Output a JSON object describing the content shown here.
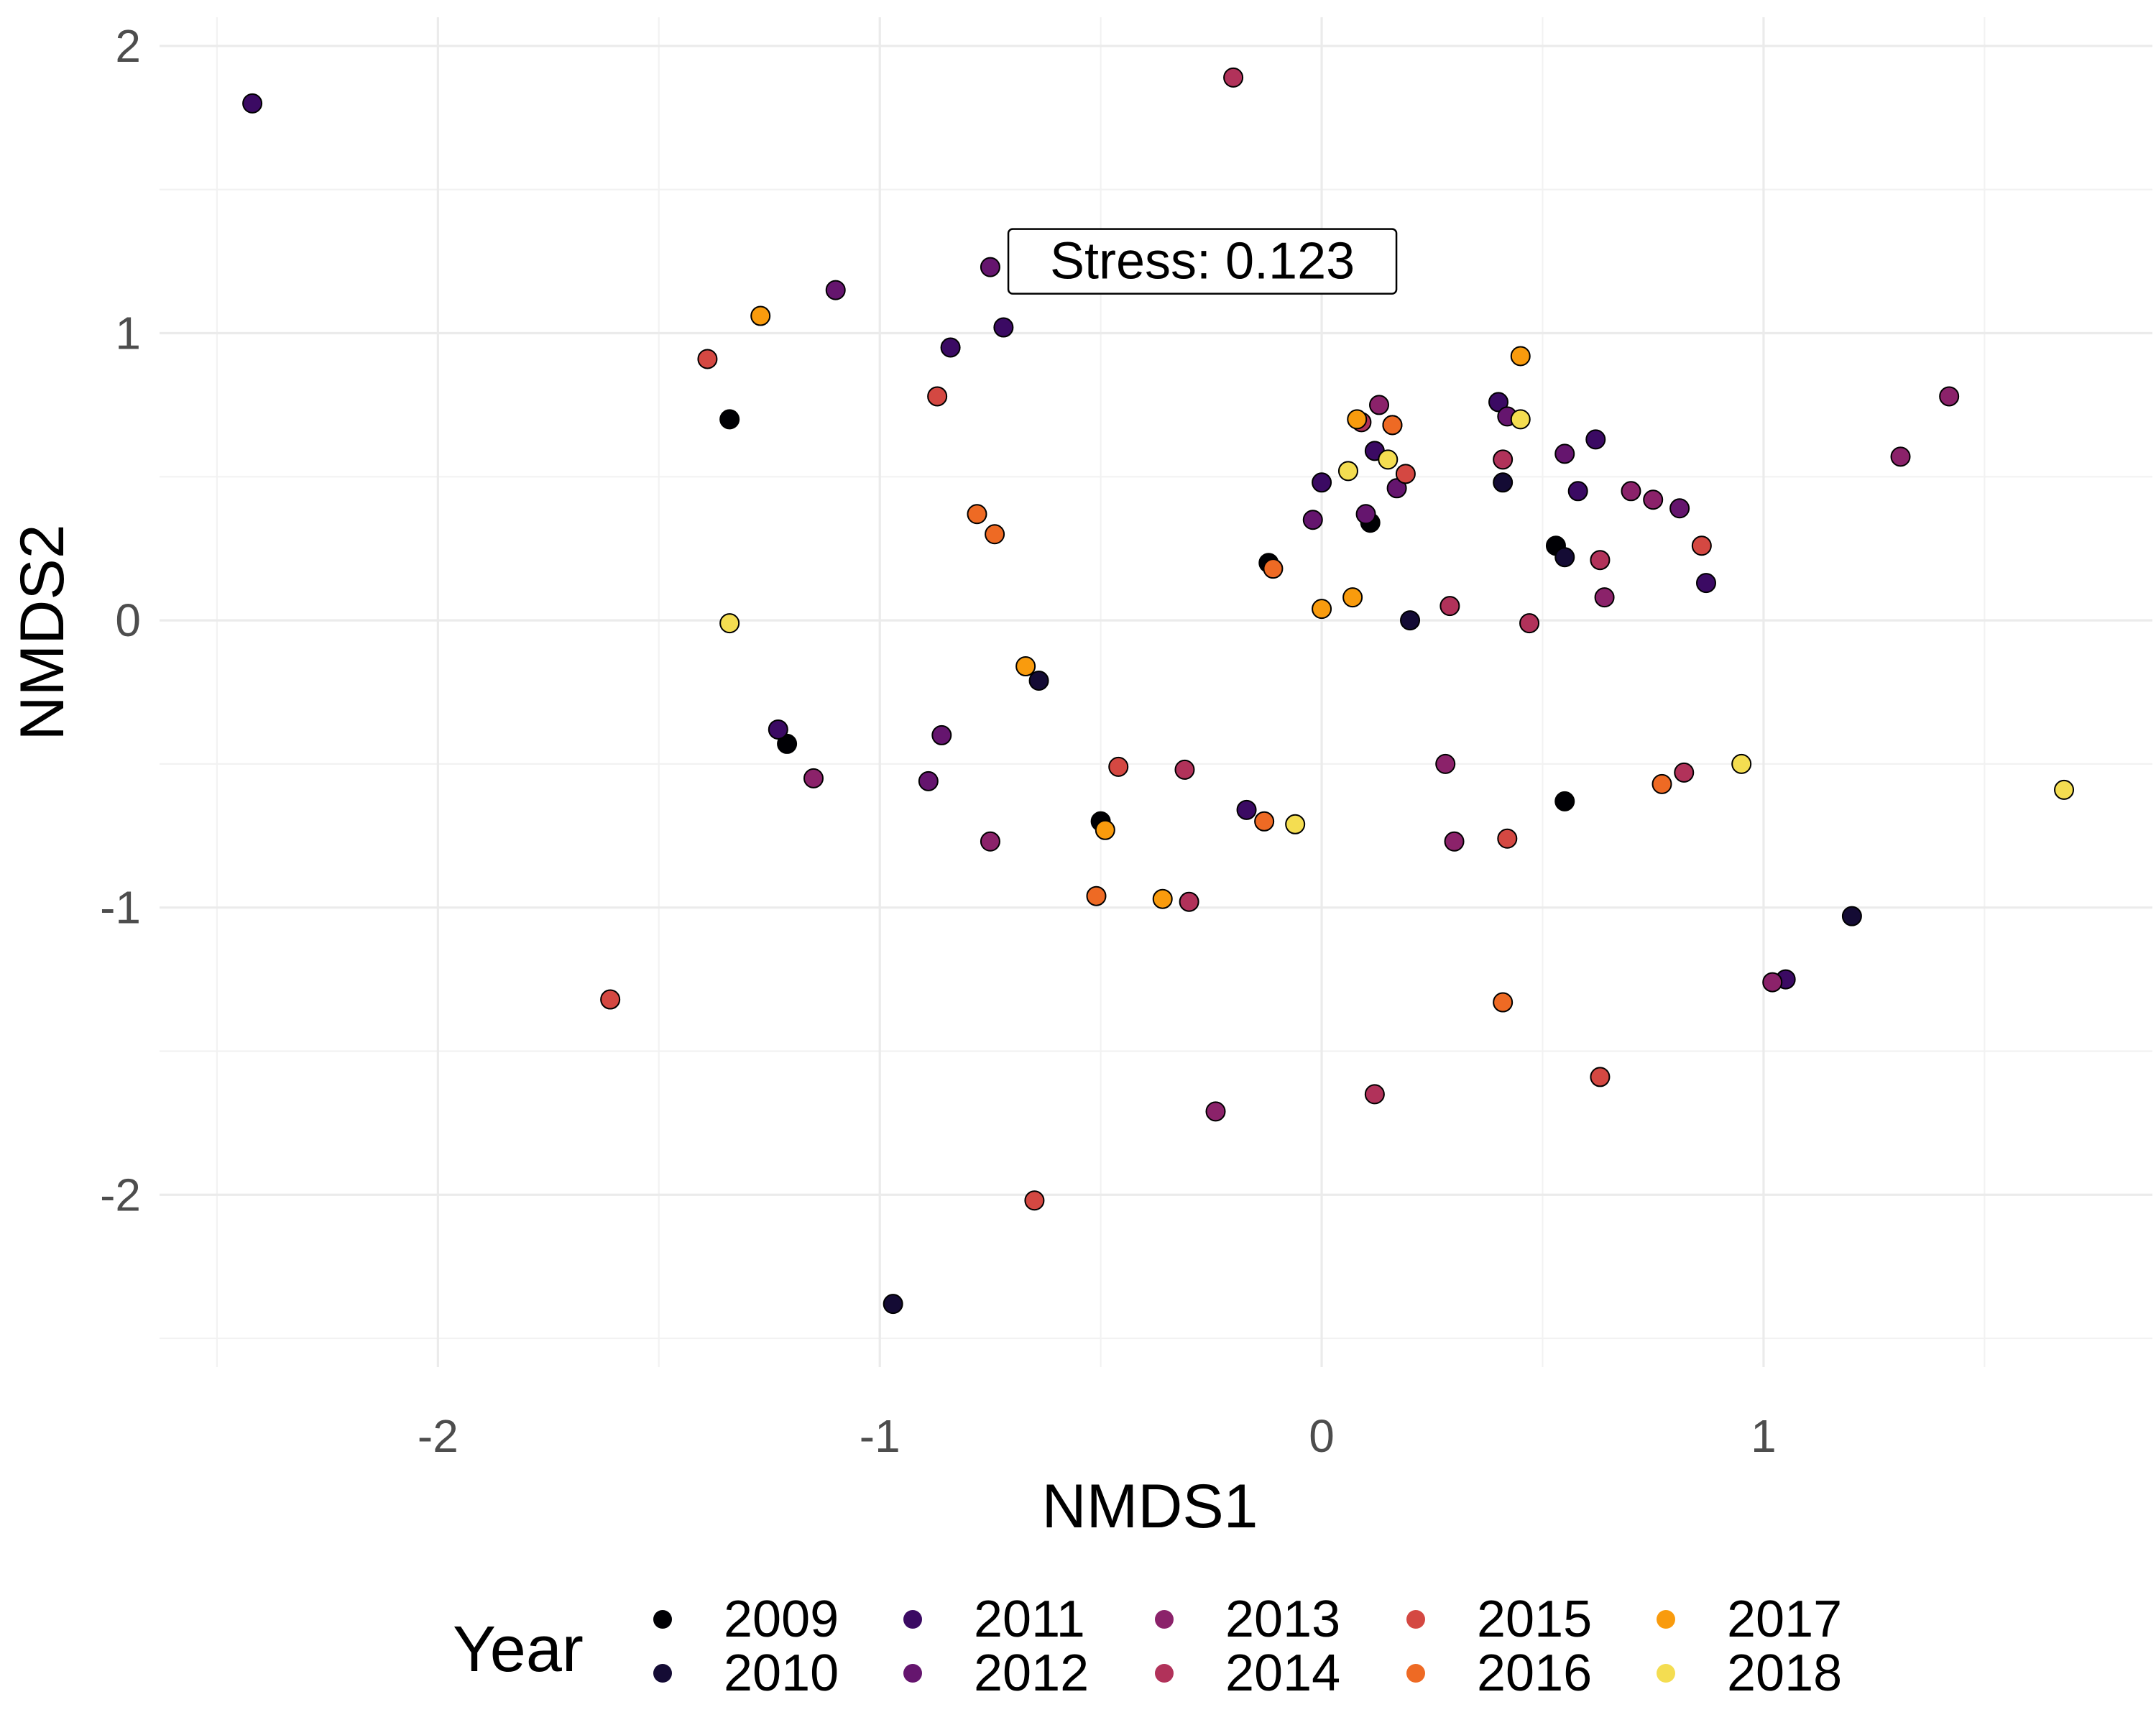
{
  "chart_data": {
    "type": "scatter",
    "xlabel": "NMDS1",
    "ylabel": "NMDS2",
    "xlim": [
      -2.63,
      1.88
    ],
    "ylim": [
      -2.6,
      2.1
    ],
    "x_ticks": [
      -2,
      -1,
      0,
      1
    ],
    "x_tick_labels": [
      "-2",
      "-1",
      "0",
      "1"
    ],
    "y_ticks": [
      -2,
      -1,
      0,
      1,
      2
    ],
    "y_tick_labels": [
      "-2",
      "-1",
      "0",
      "1",
      "2"
    ],
    "grid": true,
    "legend": {
      "title": "Year",
      "placement": "bottom"
    },
    "annotation": {
      "text": "Stress:  0.123",
      "x": -0.27,
      "y": 1.25
    },
    "series": [
      {
        "name": "2009",
        "color": "#000004",
        "points": [
          [
            -1.34,
            0.7
          ],
          [
            -1.21,
            -0.43
          ],
          [
            -0.12,
            0.2
          ],
          [
            0.11,
            0.34
          ],
          [
            0.16,
            0.68
          ],
          [
            0.53,
            0.26
          ],
          [
            -0.5,
            -0.7
          ],
          [
            0.55,
            -0.63
          ]
        ]
      },
      {
        "name": "2010",
        "color": "#140B34",
        "points": [
          [
            -0.97,
            -2.38
          ],
          [
            -0.64,
            -0.21
          ],
          [
            0.2,
            0.0
          ],
          [
            0.41,
            0.48
          ],
          [
            0.55,
            0.22
          ],
          [
            1.2,
            -1.03
          ]
        ]
      },
      {
        "name": "2011",
        "color": "#3B0A63",
        "points": [
          [
            -2.42,
            1.8
          ],
          [
            -1.23,
            -0.38
          ],
          [
            -0.84,
            0.95
          ],
          [
            -0.72,
            1.02
          ],
          [
            0.0,
            0.48
          ],
          [
            0.12,
            0.59
          ],
          [
            0.4,
            0.76
          ],
          [
            0.58,
            0.45
          ],
          [
            0.62,
            0.63
          ],
          [
            0.87,
            0.13
          ],
          [
            1.05,
            -1.25
          ],
          [
            -0.17,
            -0.66
          ]
        ]
      },
      {
        "name": "2012",
        "color": "#65156E",
        "points": [
          [
            -1.1,
            1.15
          ],
          [
            -0.75,
            1.23
          ],
          [
            -0.86,
            -0.4
          ],
          [
            -0.89,
            -0.56
          ],
          [
            -0.02,
            0.35
          ],
          [
            0.17,
            0.46
          ],
          [
            0.42,
            0.71
          ],
          [
            0.55,
            0.58
          ],
          [
            0.81,
            0.39
          ],
          [
            0.1,
            0.37
          ]
        ]
      },
      {
        "name": "2013",
        "color": "#8B226A",
        "points": [
          [
            -1.15,
            -0.55
          ],
          [
            -0.75,
            -0.77
          ],
          [
            -0.24,
            -1.71
          ],
          [
            0.28,
            -0.5
          ],
          [
            0.3,
            -0.77
          ],
          [
            0.64,
            0.08
          ],
          [
            0.7,
            0.45
          ],
          [
            0.75,
            0.42
          ],
          [
            1.02,
            -1.26
          ],
          [
            1.31,
            0.57
          ],
          [
            1.42,
            0.78
          ],
          [
            0.13,
            0.75
          ]
        ]
      },
      {
        "name": "2014",
        "color": "#B1325A",
        "points": [
          [
            -0.2,
            1.89
          ],
          [
            -0.31,
            -0.52
          ],
          [
            -0.3,
            -0.98
          ],
          [
            0.09,
            0.69
          ],
          [
            0.12,
            -1.65
          ],
          [
            0.29,
            0.05
          ],
          [
            0.41,
            0.56
          ],
          [
            0.47,
            -0.01
          ],
          [
            0.63,
            0.21
          ],
          [
            0.82,
            -0.53
          ]
        ]
      },
      {
        "name": "2015",
        "color": "#D44842",
        "points": [
          [
            -1.61,
            -1.32
          ],
          [
            -1.39,
            0.91
          ],
          [
            -0.87,
            0.78
          ],
          [
            -0.65,
            -2.02
          ],
          [
            -0.46,
            -0.51
          ],
          [
            0.19,
            0.51
          ],
          [
            0.42,
            -0.76
          ],
          [
            0.63,
            -1.59
          ],
          [
            0.86,
            0.26
          ]
        ]
      },
      {
        "name": "2016",
        "color": "#EE6A24",
        "points": [
          [
            -0.78,
            0.37
          ],
          [
            -0.74,
            0.3
          ],
          [
            -0.51,
            -0.96
          ],
          [
            -0.13,
            -0.7
          ],
          [
            -0.11,
            0.18
          ],
          [
            0.16,
            0.68
          ],
          [
            0.41,
            -1.33
          ],
          [
            0.77,
            -0.57
          ]
        ]
      },
      {
        "name": "2017",
        "color": "#F99B0D",
        "points": [
          [
            -1.27,
            1.06
          ],
          [
            -0.67,
            -0.16
          ],
          [
            -0.49,
            -0.73
          ],
          [
            -0.36,
            -0.97
          ],
          [
            0.0,
            0.04
          ],
          [
            0.07,
            0.08
          ],
          [
            0.08,
            0.7
          ],
          [
            0.45,
            0.92
          ]
        ]
      },
      {
        "name": "2018",
        "color": "#F4DD51",
        "points": [
          [
            -1.34,
            -0.01
          ],
          [
            -0.06,
            -0.71
          ],
          [
            0.06,
            0.52
          ],
          [
            0.15,
            0.56
          ],
          [
            0.45,
            0.7
          ],
          [
            0.95,
            -0.5
          ],
          [
            1.68,
            -0.59
          ]
        ]
      }
    ]
  }
}
